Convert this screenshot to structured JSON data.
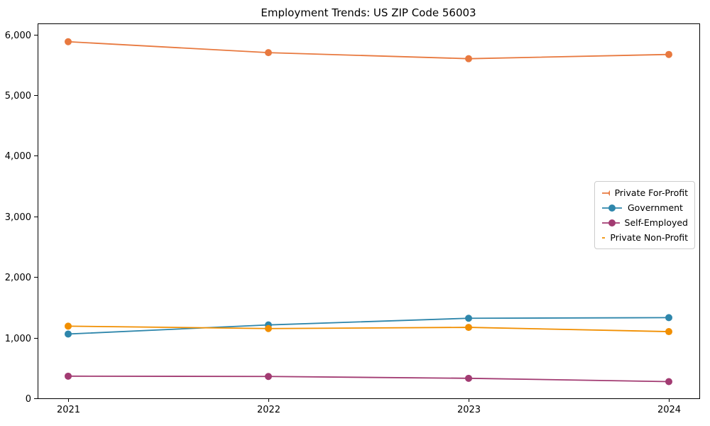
{
  "title": "Employment Trends: US ZIP Code 56003",
  "chart_data": {
    "type": "line",
    "title": "Employment Trends: US ZIP Code 56003",
    "xlabel": "",
    "ylabel": "",
    "categories": [
      "2021",
      "2022",
      "2023",
      "2024"
    ],
    "series": [
      {
        "name": "Private For-Profit",
        "color": "#E8793F",
        "values": [
          5880,
          5700,
          5600,
          5670
        ]
      },
      {
        "name": "Government",
        "color": "#2E86AB",
        "values": [
          1060,
          1210,
          1320,
          1330
        ]
      },
      {
        "name": "Self-Employed",
        "color": "#A23B72",
        "values": [
          365,
          360,
          330,
          275
        ]
      },
      {
        "name": "Private Non-Profit",
        "color": "#F18F01",
        "values": [
          1190,
          1150,
          1170,
          1100
        ]
      }
    ],
    "ylim": [
      0,
      6000
    ],
    "yticks": {
      "values": [
        0,
        1000,
        2000,
        3000,
        4000,
        5000,
        6000
      ],
      "labels": [
        "0",
        "1,000",
        "2,000",
        "3,000",
        "4,000",
        "5,000",
        "6,000"
      ]
    },
    "grid": false,
    "legend_position": "right-center",
    "marker": "circle",
    "axis_color": "#000000",
    "background_color": "#ffffff"
  }
}
